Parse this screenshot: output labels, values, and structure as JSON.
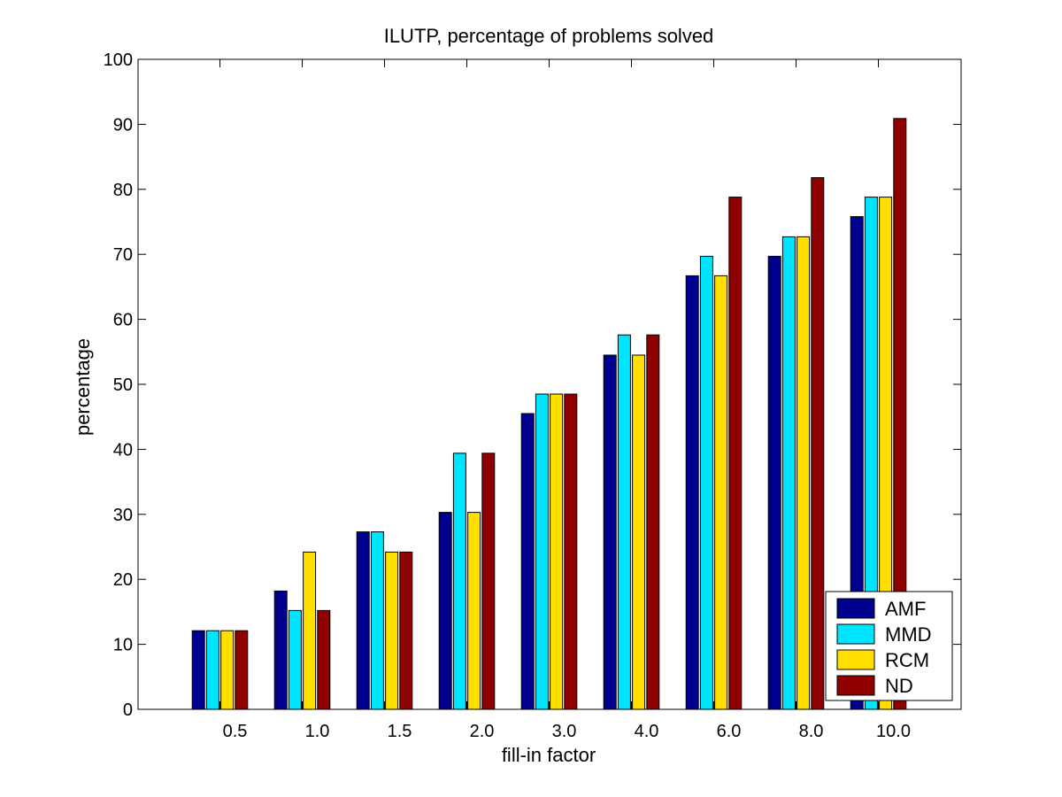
{
  "chart_data": {
    "type": "bar",
    "title": "ILUTP, percentage of problems solved",
    "xlabel": "fill-in factor",
    "ylabel": "percentage",
    "ylim": [
      0,
      100
    ],
    "yticks": [
      0,
      10,
      20,
      30,
      40,
      50,
      60,
      70,
      80,
      90,
      100
    ],
    "categories": [
      "0.5",
      "1.0",
      "1.5",
      "2.0",
      "3.0",
      "4.0",
      "6.0",
      "8.0",
      "10.0"
    ],
    "series": [
      {
        "name": "AMF",
        "color": "#00008f",
        "values": [
          12.1,
          18.2,
          27.3,
          30.3,
          45.5,
          54.5,
          66.7,
          69.7,
          75.8
        ]
      },
      {
        "name": "MMD",
        "color": "#00e5ff",
        "values": [
          12.1,
          15.2,
          27.3,
          39.4,
          48.5,
          57.6,
          69.7,
          72.7,
          78.8
        ]
      },
      {
        "name": "RCM",
        "color": "#ffdf00",
        "values": [
          12.1,
          24.2,
          24.2,
          30.3,
          48.5,
          54.5,
          66.7,
          72.7,
          78.8
        ]
      },
      {
        "name": "ND",
        "color": "#8f0000",
        "values": [
          12.1,
          15.2,
          24.2,
          39.4,
          48.5,
          57.6,
          78.8,
          81.8,
          90.9
        ]
      }
    ],
    "grid": false,
    "legend_position": "bottom-right"
  }
}
